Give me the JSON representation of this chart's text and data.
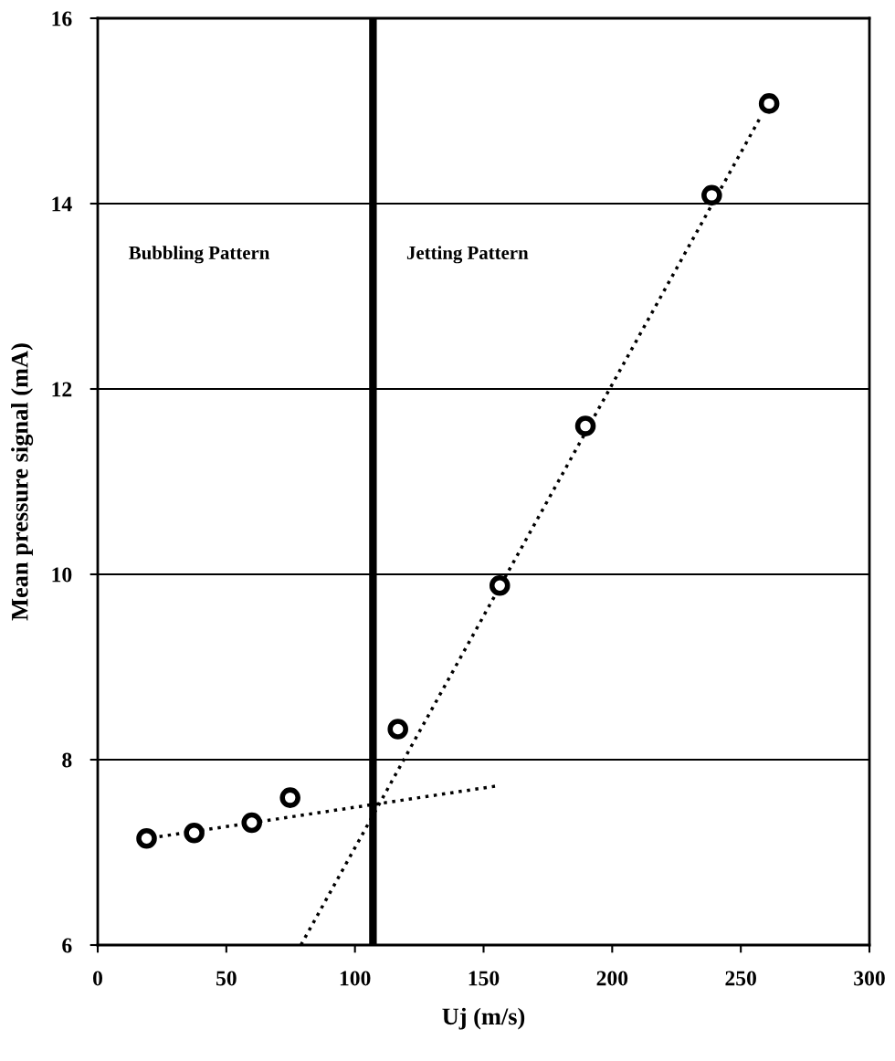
{
  "chart_data": {
    "type": "scatter",
    "xlabel": "Uj (m/s)",
    "ylabel": "Mean pressure signal (mA)",
    "xlim": [
      0,
      300
    ],
    "xticks": [
      0,
      50,
      100,
      150,
      200,
      250,
      300
    ],
    "ylim": [
      6,
      16
    ],
    "yticks": [
      6,
      8,
      10,
      12,
      14,
      16
    ],
    "grid": "y",
    "legend": false,
    "series": [
      {
        "color": "#000000",
        "marker": "circle",
        "x": [
          19,
          37.5,
          59.9,
          74.8,
          116.7,
          156.3,
          189.6,
          238.7,
          261
        ],
        "values": [
          7.15,
          7.21,
          7.32,
          7.59,
          8.33,
          9.88,
          11.6,
          14.09,
          15.08
        ]
      },
      {
        "type": "line",
        "color": "#000000",
        "line_style": "dotted",
        "marker": "none",
        "x": [
          24,
          156
        ],
        "values": [
          7.17,
          7.72
        ]
      },
      {
        "type": "line",
        "color": "#000000",
        "line_style": "dotted",
        "marker": "none",
        "x": [
          79,
          258
        ],
        "values": [
          6,
          14.95
        ]
      }
    ],
    "ref_lines": [
      {
        "axis": "x",
        "value": 107,
        "color": "#000000"
      }
    ],
    "annotations": [
      "Bubbling Pattern",
      "Jetting Pattern"
    ]
  }
}
